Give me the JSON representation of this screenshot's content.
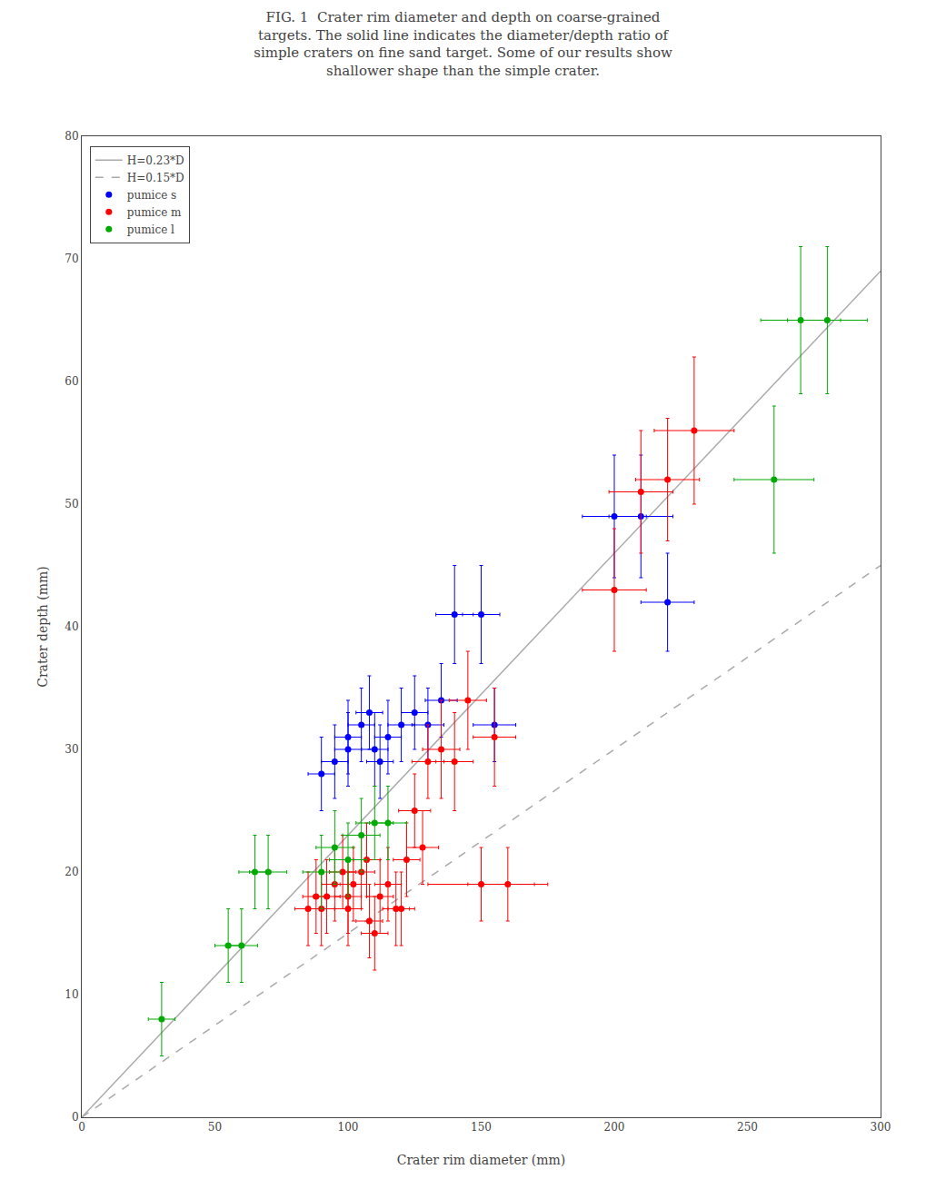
{
  "chart_data": {
    "type": "scatter",
    "title": "FIG. 1  Crater rim diameter and depth on coarse-grained\ntargets. The solid line indicates the diameter/depth ratio of\nsimple craters on fine sand target. Some of our results show\nshallower shape than the simple crater.",
    "x_label": "Crater rim diameter (mm)",
    "y_label": "Crater depth (mm)",
    "xlim": [
      0,
      300
    ],
    "ylim": [
      0,
      80
    ],
    "xticks": [
      0,
      50,
      100,
      150,
      200,
      250,
      300
    ],
    "yticks": [
      0,
      10,
      20,
      30,
      40,
      50,
      60,
      70,
      80
    ],
    "grid": false,
    "legend": "upper left",
    "series": [
      {
        "name": "H=0.23*D",
        "type": "line",
        "line_style": "solid",
        "color": "#aaaaaa",
        "x": [
          0,
          300
        ],
        "values": [
          0,
          69
        ]
      },
      {
        "name": "H=0.15*D",
        "type": "line",
        "line_style": "dashed",
        "color": "#aaaaaa",
        "x": [
          0,
          300
        ],
        "values": [
          0,
          45
        ]
      },
      {
        "name": "pumice s",
        "type": "scatter",
        "marker": "circle",
        "color": "#0000ff",
        "x": [
          90,
          95,
          100,
          100,
          105,
          108,
          110,
          112,
          115,
          120,
          125,
          130,
          135,
          140,
          150,
          155,
          200,
          210,
          220
        ],
        "values": [
          28,
          29,
          30,
          31,
          32,
          33,
          30,
          29,
          31,
          32,
          33,
          32,
          34,
          41,
          41,
          32,
          49,
          49,
          42
        ],
        "xerr": [
          5,
          5,
          5,
          5,
          5,
          5,
          5,
          5,
          5,
          5,
          5,
          6,
          6,
          7,
          7,
          8,
          12,
          12,
          10
        ],
        "yerr": [
          3,
          3,
          3,
          3,
          3,
          3,
          3,
          3,
          3,
          3,
          3,
          3,
          3,
          4,
          4,
          3,
          5,
          5,
          4
        ]
      },
      {
        "name": "pumice m",
        "type": "scatter",
        "marker": "circle",
        "color": "#ff0000",
        "x": [
          85,
          88,
          90,
          92,
          95,
          98,
          100,
          100,
          102,
          105,
          107,
          108,
          110,
          112,
          115,
          118,
          120,
          122,
          125,
          128,
          130,
          135,
          140,
          145,
          150,
          155,
          160,
          200,
          210,
          220,
          230
        ],
        "values": [
          17,
          18,
          17,
          18,
          19,
          20,
          18,
          17,
          19,
          20,
          21,
          16,
          15,
          18,
          19,
          17,
          17,
          21,
          25,
          22,
          29,
          30,
          29,
          34,
          19,
          31,
          19,
          43,
          51,
          52,
          56
        ],
        "xerr": [
          5,
          5,
          5,
          5,
          5,
          5,
          5,
          5,
          5,
          5,
          5,
          5,
          5,
          5,
          5,
          5,
          5,
          5,
          6,
          6,
          6,
          7,
          7,
          7,
          20,
          8,
          15,
          12,
          12,
          12,
          15
        ],
        "yerr": [
          3,
          3,
          3,
          3,
          3,
          3,
          3,
          3,
          3,
          3,
          3,
          3,
          3,
          3,
          3,
          3,
          3,
          3,
          3,
          3,
          3,
          4,
          4,
          4,
          3,
          4,
          3,
          5,
          5,
          5,
          6
        ]
      },
      {
        "name": "pumice l",
        "type": "scatter",
        "marker": "circle",
        "color": "#00aa00",
        "x": [
          30,
          55,
          60,
          65,
          70,
          90,
          95,
          100,
          105,
          110,
          115,
          260,
          270,
          280
        ],
        "values": [
          8,
          14,
          14,
          20,
          20,
          20,
          22,
          21,
          23,
          24,
          24,
          52,
          65,
          65
        ],
        "xerr": [
          5,
          5,
          6,
          6,
          7,
          7,
          7,
          7,
          7,
          7,
          7,
          15,
          15,
          15
        ],
        "yerr": [
          3,
          3,
          3,
          3,
          3,
          3,
          3,
          3,
          3,
          3,
          3,
          6,
          6,
          6
        ]
      }
    ]
  }
}
